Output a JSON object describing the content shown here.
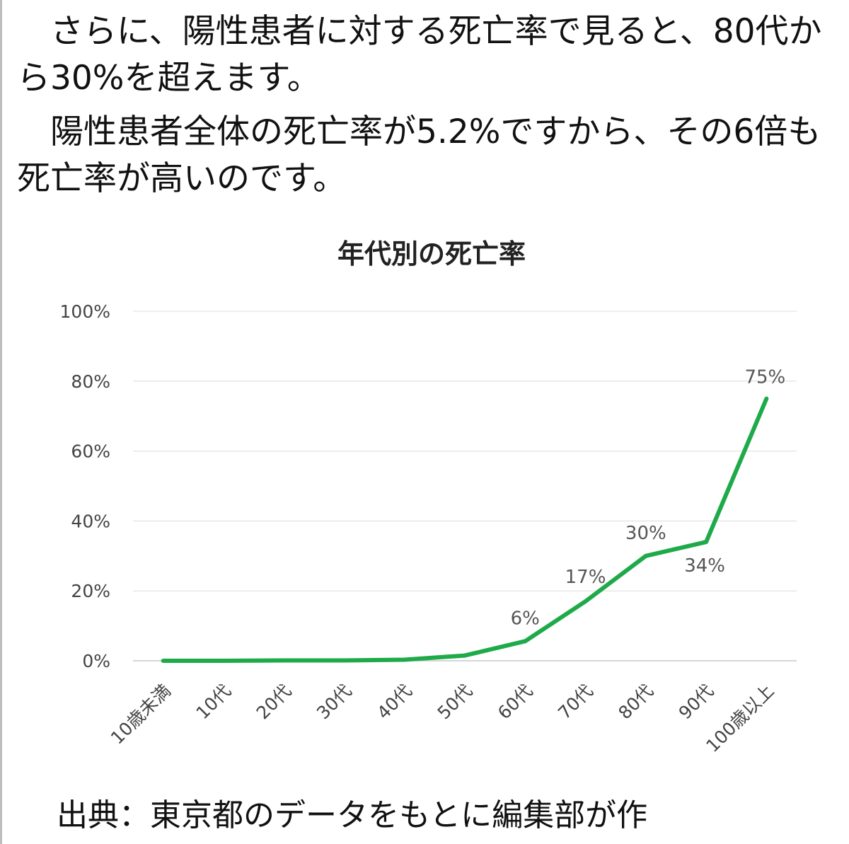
{
  "intro": {
    "paragraph1": "　さらに、陽性患者に対する死亡率で見ると、80代から30%を超えます。",
    "paragraph2": "　陽性患者全体の死亡率が5.2%ですから、その6倍も死亡率が高いのです。"
  },
  "chart_data": {
    "type": "line",
    "title": "年代別の死亡率",
    "xlabel": "",
    "ylabel": "",
    "categories": [
      "10歳未満",
      "10代",
      "20代",
      "30代",
      "40代",
      "50代",
      "60代",
      "70代",
      "80代",
      "90代",
      "100歳以上"
    ],
    "values": [
      0,
      0,
      0.1,
      0.1,
      0.3,
      1.5,
      5.6,
      17,
      30,
      34,
      75
    ],
    "data_labels": [
      "",
      "",
      "",
      "",
      "",
      "",
      "6%",
      "17%",
      "30%",
      "34%",
      "75%"
    ],
    "yticks": [
      "0%",
      "20%",
      "40%",
      "60%",
      "80%",
      "100%"
    ],
    "ylim": [
      0,
      100
    ],
    "grid": true,
    "legend": "none",
    "line_color": "#1faa4a"
  },
  "source": "出典：東京都のデータをもとに編集部が作"
}
